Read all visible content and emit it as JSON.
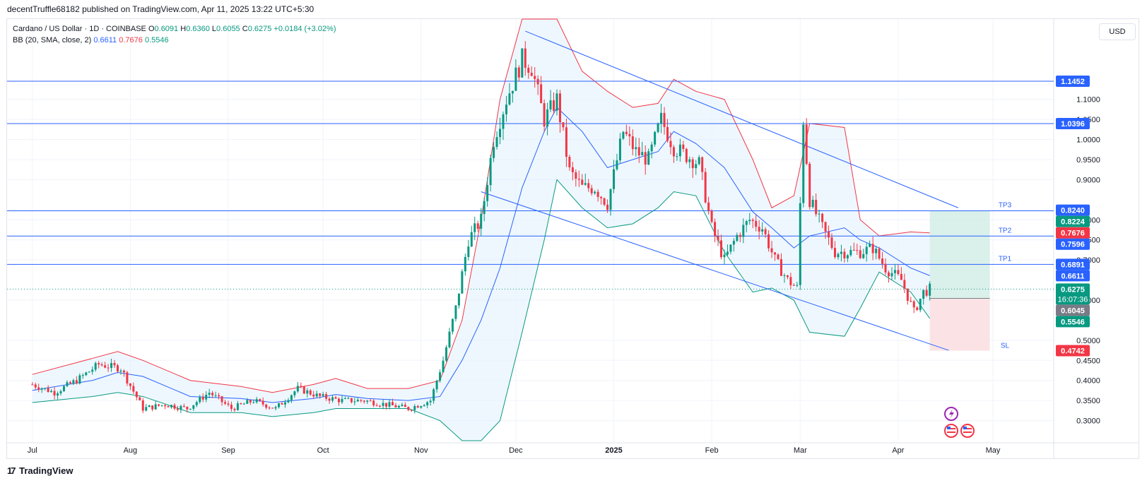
{
  "header": {
    "published": "decentTruffle68182 published on TradingView.com, Apr 11, 2025 13:22 UTC+5:30"
  },
  "legend": {
    "symbol": "Cardano / US Dollar · 1D · COINBASE",
    "open_label": "O",
    "open": "0.6091",
    "high_label": "H",
    "high": "0.6360",
    "low_label": "L",
    "low": "0.6055",
    "close_label": "C",
    "close": "0.6275",
    "change": "+0.0184 (+3.02%)",
    "bb_label": "BB (20, SMA, close, 2)",
    "bb_basis": "0.6611",
    "bb_upper": "0.7676",
    "bb_lower": "0.5546"
  },
  "currency": "USD",
  "footer": {
    "brand": "TradingView"
  },
  "colors": {
    "up": "#089981",
    "down": "#f23645",
    "basis": "#2962ff",
    "upper": "#f23645",
    "lower": "#089981",
    "line": "#2962ff",
    "fill": "#e3f2fd",
    "tp_zone": "#d3ede6",
    "sl_zone": "#fbe0e2"
  },
  "chart_data": {
    "type": "candlestick",
    "ylim": [
      0.25,
      1.3
    ],
    "y_ticks": [
      "0.3000",
      "0.3500",
      "0.4000",
      "0.4500",
      "0.5000",
      "0.6000",
      "0.7000",
      "0.7500",
      "0.8000",
      "0.9000",
      "0.9500",
      "1.0000",
      "1.0500",
      "1.1000"
    ],
    "x_ticks": [
      {
        "label": "Jul",
        "date": "2024-07-01"
      },
      {
        "label": "Aug",
        "date": "2024-08-01"
      },
      {
        "label": "Sep",
        "date": "2024-09-01"
      },
      {
        "label": "Oct",
        "date": "2024-10-01"
      },
      {
        "label": "Nov",
        "date": "2024-11-01"
      },
      {
        "label": "Dec",
        "date": "2024-12-01"
      },
      {
        "label": "2025",
        "date": "2025-01-01"
      },
      {
        "label": "Feb",
        "date": "2025-02-01"
      },
      {
        "label": "Mar",
        "date": "2025-03-01"
      },
      {
        "label": "Apr",
        "date": "2025-04-01"
      },
      {
        "label": "May",
        "date": "2025-05-01"
      }
    ],
    "horizontal_levels": [
      1.1452,
      1.0396,
      0.8224,
      0.7596,
      0.6891
    ],
    "price_labels": [
      {
        "value": "1.1452",
        "color": "#2962ff"
      },
      {
        "value": "1.0396",
        "color": "#2962ff"
      },
      {
        "value": "0.8240",
        "color": "#2962ff"
      },
      {
        "value": "0.8224",
        "color": "#089981"
      },
      {
        "value": "0.7676",
        "color": "#f23645"
      },
      {
        "value": "0.7596",
        "color": "#2962ff"
      },
      {
        "value": "0.6891",
        "color": "#2962ff"
      },
      {
        "value": "0.6611",
        "color": "#2962ff"
      },
      {
        "value": "0.6275",
        "color": "#089981",
        "sub": "16:07:36"
      },
      {
        "value": "0.6045",
        "color": "#787b86"
      },
      {
        "value": "0.5546",
        "color": "#089981"
      },
      {
        "value": "0.4742",
        "color": "#f23645"
      }
    ],
    "targets": [
      {
        "label": "TP3",
        "value": 0.8224
      },
      {
        "label": "TP2",
        "value": 0.7596
      },
      {
        "label": "TP1",
        "value": 0.6891
      },
      {
        "label": "SL",
        "value": 0.4742
      }
    ],
    "position": {
      "entry": 0.6045,
      "target": 0.8224,
      "stop": 0.4742,
      "start": "2025-04-11",
      "end": "2025-04-30"
    },
    "channel": {
      "upper": [
        {
          "date": "2024-12-04",
          "price": 1.27
        },
        {
          "date": "2025-04-20",
          "price": 0.83
        }
      ],
      "lower": [
        {
          "date": "2024-11-20",
          "price": 0.87
        },
        {
          "date": "2025-04-17",
          "price": 0.475
        }
      ]
    },
    "current_price": 0.6275,
    "bollinger": {
      "upper": [
        [
          "2024-07-01",
          0.415
        ],
        [
          "2024-07-20",
          0.455
        ],
        [
          "2024-07-28",
          0.472
        ],
        [
          "2024-08-05",
          0.45
        ],
        [
          "2024-08-20",
          0.4
        ],
        [
          "2024-09-05",
          0.385
        ],
        [
          "2024-09-15",
          0.37
        ],
        [
          "2024-09-28",
          0.39
        ],
        [
          "2024-10-05",
          0.405
        ],
        [
          "2024-10-15",
          0.38
        ],
        [
          "2024-10-28",
          0.38
        ],
        [
          "2024-11-07",
          0.4
        ],
        [
          "2024-11-14",
          0.55
        ],
        [
          "2024-11-20",
          0.8
        ],
        [
          "2024-11-26",
          1.1
        ],
        [
          "2024-12-03",
          1.32
        ],
        [
          "2024-12-10",
          1.38
        ],
        [
          "2024-12-14",
          1.36
        ],
        [
          "2024-12-22",
          1.17
        ],
        [
          "2024-12-30",
          1.12
        ],
        [
          "2025-01-07",
          1.08
        ],
        [
          "2025-01-15",
          1.09
        ],
        [
          "2025-01-20",
          1.15
        ],
        [
          "2025-01-27",
          1.12
        ],
        [
          "2025-02-05",
          1.1
        ],
        [
          "2025-02-14",
          0.95
        ],
        [
          "2025-02-20",
          0.83
        ],
        [
          "2025-02-27",
          0.86
        ],
        [
          "2025-03-04",
          1.04
        ],
        [
          "2025-03-15",
          1.03
        ],
        [
          "2025-03-20",
          0.8
        ],
        [
          "2025-03-26",
          0.76
        ],
        [
          "2025-04-05",
          0.77
        ],
        [
          "2025-04-11",
          0.7676
        ]
      ],
      "basis": [
        [
          "2024-07-01",
          0.375
        ],
        [
          "2024-07-20",
          0.4
        ],
        [
          "2024-07-28",
          0.42
        ],
        [
          "2024-08-05",
          0.41
        ],
        [
          "2024-08-20",
          0.36
        ],
        [
          "2024-09-05",
          0.355
        ],
        [
          "2024-09-15",
          0.345
        ],
        [
          "2024-09-28",
          0.355
        ],
        [
          "2024-10-05",
          0.365
        ],
        [
          "2024-10-15",
          0.355
        ],
        [
          "2024-10-28",
          0.35
        ],
        [
          "2024-11-07",
          0.36
        ],
        [
          "2024-11-14",
          0.45
        ],
        [
          "2024-11-20",
          0.55
        ],
        [
          "2024-11-26",
          0.68
        ],
        [
          "2024-12-03",
          0.88
        ],
        [
          "2024-12-10",
          1.02
        ],
        [
          "2024-12-14",
          1.08
        ],
        [
          "2024-12-22",
          1.02
        ],
        [
          "2024-12-30",
          0.93
        ],
        [
          "2025-01-07",
          0.95
        ],
        [
          "2025-01-15",
          0.97
        ],
        [
          "2025-01-20",
          1.02
        ],
        [
          "2025-01-27",
          0.99
        ],
        [
          "2025-02-05",
          0.93
        ],
        [
          "2025-02-14",
          0.82
        ],
        [
          "2025-02-20",
          0.78
        ],
        [
          "2025-02-27",
          0.73
        ],
        [
          "2025-03-04",
          0.76
        ],
        [
          "2025-03-15",
          0.78
        ],
        [
          "2025-03-20",
          0.75
        ],
        [
          "2025-03-26",
          0.73
        ],
        [
          "2025-04-05",
          0.68
        ],
        [
          "2025-04-11",
          0.6611
        ]
      ],
      "lower": [
        [
          "2024-07-01",
          0.345
        ],
        [
          "2024-07-20",
          0.36
        ],
        [
          "2024-07-28",
          0.37
        ],
        [
          "2024-08-05",
          0.36
        ],
        [
          "2024-08-20",
          0.32
        ],
        [
          "2024-09-05",
          0.32
        ],
        [
          "2024-09-15",
          0.31
        ],
        [
          "2024-09-28",
          0.32
        ],
        [
          "2024-10-05",
          0.33
        ],
        [
          "2024-10-15",
          0.33
        ],
        [
          "2024-10-28",
          0.33
        ],
        [
          "2024-11-07",
          0.3
        ],
        [
          "2024-11-14",
          0.24
        ],
        [
          "2024-11-20",
          0.2
        ],
        [
          "2024-11-26",
          0.3
        ],
        [
          "2024-12-03",
          0.52
        ],
        [
          "2024-12-10",
          0.75
        ],
        [
          "2024-12-14",
          0.9
        ],
        [
          "2024-12-22",
          0.83
        ],
        [
          "2024-12-30",
          0.78
        ],
        [
          "2025-01-07",
          0.79
        ],
        [
          "2025-01-15",
          0.83
        ],
        [
          "2025-01-20",
          0.87
        ],
        [
          "2025-01-27",
          0.86
        ],
        [
          "2025-02-05",
          0.72
        ],
        [
          "2025-02-14",
          0.62
        ],
        [
          "2025-02-20",
          0.63
        ],
        [
          "2025-02-27",
          0.6
        ],
        [
          "2025-03-04",
          0.52
        ],
        [
          "2025-03-15",
          0.51
        ],
        [
          "2025-03-20",
          0.58
        ],
        [
          "2025-03-26",
          0.67
        ],
        [
          "2025-04-05",
          0.62
        ],
        [
          "2025-04-11",
          0.5546
        ]
      ]
    },
    "price_path": [
      [
        "2024-07-01",
        0.39
      ],
      [
        "2024-07-08",
        0.37
      ],
      [
        "2024-07-15",
        0.4
      ],
      [
        "2024-07-22",
        0.44
      ],
      [
        "2024-07-29",
        0.43
      ],
      [
        "2024-08-05",
        0.33
      ],
      [
        "2024-08-12",
        0.34
      ],
      [
        "2024-08-19",
        0.33
      ],
      [
        "2024-08-26",
        0.37
      ],
      [
        "2024-09-02",
        0.33
      ],
      [
        "2024-09-09",
        0.35
      ],
      [
        "2024-09-16",
        0.33
      ],
      [
        "2024-09-23",
        0.38
      ],
      [
        "2024-09-30",
        0.36
      ],
      [
        "2024-10-07",
        0.35
      ],
      [
        "2024-10-14",
        0.35
      ],
      [
        "2024-10-21",
        0.34
      ],
      [
        "2024-10-28",
        0.33
      ],
      [
        "2024-11-04",
        0.35
      ],
      [
        "2024-11-08",
        0.45
      ],
      [
        "2024-11-12",
        0.58
      ],
      [
        "2024-11-16",
        0.75
      ],
      [
        "2024-11-20",
        0.8
      ],
      [
        "2024-11-24",
        1.0
      ],
      [
        "2024-11-28",
        1.1
      ],
      [
        "2024-12-03",
        1.2
      ],
      [
        "2024-12-06",
        1.18
      ],
      [
        "2024-12-10",
        1.05
      ],
      [
        "2024-12-14",
        1.1
      ],
      [
        "2024-12-18",
        0.92
      ],
      [
        "2024-12-22",
        0.88
      ],
      [
        "2024-12-26",
        0.88
      ],
      [
        "2024-12-30",
        0.84
      ],
      [
        "2025-01-04",
        1.02
      ],
      [
        "2025-01-08",
        0.97
      ],
      [
        "2025-01-12",
        0.95
      ],
      [
        "2025-01-16",
        1.05
      ],
      [
        "2025-01-20",
        0.98
      ],
      [
        "2025-01-24",
        0.96
      ],
      [
        "2025-01-28",
        0.94
      ],
      [
        "2025-02-01",
        0.78
      ],
      [
        "2025-02-05",
        0.7
      ],
      [
        "2025-02-09",
        0.76
      ],
      [
        "2025-02-13",
        0.8
      ],
      [
        "2025-02-17",
        0.78
      ],
      [
        "2025-02-21",
        0.7
      ],
      [
        "2025-02-25",
        0.65
      ],
      [
        "2025-02-28",
        0.63
      ],
      [
        "2025-03-02",
        1.05
      ],
      [
        "2025-03-04",
        0.85
      ],
      [
        "2025-03-08",
        0.78
      ],
      [
        "2025-03-12",
        0.72
      ],
      [
        "2025-03-16",
        0.72
      ],
      [
        "2025-03-20",
        0.72
      ],
      [
        "2025-03-24",
        0.73
      ],
      [
        "2025-03-28",
        0.68
      ],
      [
        "2025-04-02",
        0.65
      ],
      [
        "2025-04-06",
        0.57
      ],
      [
        "2025-04-09",
        0.62
      ],
      [
        "2025-04-11",
        0.6275
      ]
    ]
  }
}
